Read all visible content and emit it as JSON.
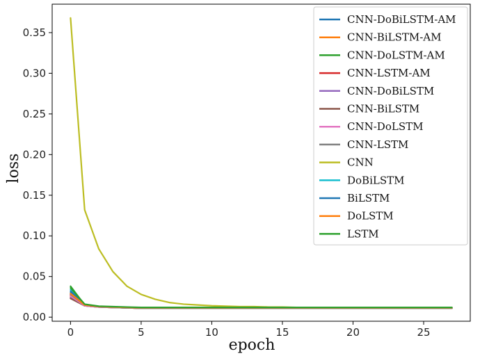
{
  "chart_data": {
    "type": "line",
    "title": "",
    "xlabel": "epoch",
    "ylabel": "loss",
    "xlim": [
      -1.3,
      28.3
    ],
    "ylim": [
      -0.005,
      0.385
    ],
    "x_ticks": [
      0,
      5,
      10,
      15,
      20,
      25
    ],
    "y_ticks": [
      0.0,
      0.05,
      0.1,
      0.15,
      0.2,
      0.25,
      0.3,
      0.35
    ],
    "y_tick_labels": [
      "0.00",
      "0.05",
      "0.10",
      "0.15",
      "0.20",
      "0.25",
      "0.30",
      "0.35"
    ],
    "grid": false,
    "legend_position": "top-right",
    "x": [
      0,
      1,
      2,
      3,
      4,
      5,
      6,
      7,
      8,
      9,
      10,
      11,
      12,
      13,
      14,
      15,
      16,
      17,
      18,
      19,
      20,
      21,
      22,
      23,
      24,
      25,
      26,
      27
    ],
    "series": [
      {
        "name": "CNN-DoBiLSTM-AM",
        "color": "#1f77b4",
        "values": [
          0.03,
          0.014,
          0.0125,
          0.012,
          0.0115,
          0.011,
          0.011,
          0.011,
          0.011,
          0.011,
          0.011,
          0.011,
          0.011,
          0.011,
          0.011,
          0.011,
          0.011,
          0.011,
          0.011,
          0.011,
          0.011,
          0.011,
          0.011,
          0.011,
          0.011,
          0.011,
          0.011,
          0.011
        ]
      },
      {
        "name": "CNN-BiLSTM-AM",
        "color": "#ff7f0e",
        "values": [
          0.025,
          0.014,
          0.0125,
          0.012,
          0.0115,
          0.011,
          0.011,
          0.011,
          0.011,
          0.011,
          0.011,
          0.011,
          0.011,
          0.011,
          0.011,
          0.011,
          0.011,
          0.011,
          0.011,
          0.011,
          0.011,
          0.011,
          0.011,
          0.011,
          0.011,
          0.011,
          0.011,
          0.011
        ]
      },
      {
        "name": "CNN-DoLSTM-AM",
        "color": "#2ca02c",
        "values": [
          0.038,
          0.015,
          0.013,
          0.0125,
          0.012,
          0.0115,
          0.0115,
          0.0115,
          0.0115,
          0.0115,
          0.0115,
          0.0115,
          0.0115,
          0.0115,
          0.0115,
          0.0115,
          0.0115,
          0.0115,
          0.0115,
          0.0115,
          0.0115,
          0.0115,
          0.0115,
          0.0115,
          0.0115,
          0.0115,
          0.0115,
          0.0115
        ]
      },
      {
        "name": "CNN-LSTM-AM",
        "color": "#d62728",
        "values": [
          0.027,
          0.015,
          0.013,
          0.012,
          0.0115,
          0.011,
          0.011,
          0.011,
          0.011,
          0.011,
          0.011,
          0.011,
          0.011,
          0.011,
          0.011,
          0.011,
          0.011,
          0.011,
          0.011,
          0.011,
          0.011,
          0.011,
          0.011,
          0.011,
          0.011,
          0.011,
          0.011,
          0.011
        ]
      },
      {
        "name": "CNN-DoBiLSTM",
        "color": "#9467bd",
        "values": [
          0.024,
          0.014,
          0.0125,
          0.012,
          0.0115,
          0.011,
          0.011,
          0.011,
          0.011,
          0.011,
          0.011,
          0.011,
          0.011,
          0.011,
          0.011,
          0.011,
          0.011,
          0.011,
          0.011,
          0.011,
          0.011,
          0.011,
          0.011,
          0.011,
          0.011,
          0.011,
          0.011,
          0.011
        ]
      },
      {
        "name": "CNN-BiLSTM",
        "color": "#8c564b",
        "values": [
          0.023,
          0.014,
          0.0125,
          0.012,
          0.0115,
          0.011,
          0.011,
          0.011,
          0.011,
          0.011,
          0.011,
          0.011,
          0.011,
          0.011,
          0.011,
          0.011,
          0.011,
          0.011,
          0.011,
          0.011,
          0.011,
          0.011,
          0.011,
          0.011,
          0.011,
          0.011,
          0.011,
          0.011
        ]
      },
      {
        "name": "CNN-DoLSTM",
        "color": "#e377c2",
        "values": [
          0.026,
          0.014,
          0.0125,
          0.012,
          0.0115,
          0.011,
          0.011,
          0.011,
          0.011,
          0.011,
          0.011,
          0.011,
          0.011,
          0.011,
          0.011,
          0.011,
          0.011,
          0.011,
          0.011,
          0.011,
          0.011,
          0.011,
          0.011,
          0.011,
          0.011,
          0.011,
          0.011,
          0.011
        ]
      },
      {
        "name": "CNN-LSTM",
        "color": "#7f7f7f",
        "values": [
          0.028,
          0.015,
          0.013,
          0.012,
          0.0115,
          0.011,
          0.011,
          0.011,
          0.011,
          0.011,
          0.011,
          0.011,
          0.011,
          0.011,
          0.011,
          0.011,
          0.011,
          0.011,
          0.011,
          0.011,
          0.011,
          0.011,
          0.011,
          0.011,
          0.011,
          0.011,
          0.011,
          0.011
        ]
      },
      {
        "name": "CNN",
        "color": "#bcbd22",
        "values": [
          0.368,
          0.132,
          0.084,
          0.056,
          0.038,
          0.028,
          0.022,
          0.018,
          0.016,
          0.015,
          0.014,
          0.0135,
          0.013,
          0.013,
          0.0125,
          0.0125,
          0.012,
          0.012,
          0.012,
          0.012,
          0.012,
          0.012,
          0.012,
          0.012,
          0.012,
          0.012,
          0.012,
          0.012
        ]
      },
      {
        "name": "DoBiLSTM",
        "color": "#17becf",
        "values": [
          0.034,
          0.015,
          0.013,
          0.0125,
          0.012,
          0.0115,
          0.0115,
          0.0115,
          0.0115,
          0.0115,
          0.0115,
          0.0115,
          0.0115,
          0.0115,
          0.0115,
          0.0115,
          0.0115,
          0.0115,
          0.0115,
          0.0115,
          0.0115,
          0.0115,
          0.0115,
          0.0115,
          0.0115,
          0.0115,
          0.0115,
          0.0115
        ]
      },
      {
        "name": "BiLSTM",
        "color": "#1f77b4",
        "values": [
          0.032,
          0.015,
          0.013,
          0.0125,
          0.012,
          0.0115,
          0.0115,
          0.0115,
          0.0115,
          0.0115,
          0.0115,
          0.0115,
          0.0115,
          0.0115,
          0.0115,
          0.0115,
          0.0115,
          0.0115,
          0.0115,
          0.0115,
          0.0115,
          0.0115,
          0.0115,
          0.0115,
          0.0115,
          0.0115,
          0.0115,
          0.0115
        ]
      },
      {
        "name": "DoLSTM",
        "color": "#ff7f0e",
        "values": [
          0.029,
          0.015,
          0.013,
          0.0125,
          0.012,
          0.0115,
          0.0115,
          0.0115,
          0.0115,
          0.0115,
          0.0115,
          0.0115,
          0.0115,
          0.0115,
          0.0115,
          0.0115,
          0.0115,
          0.0115,
          0.0115,
          0.0115,
          0.0115,
          0.0115,
          0.0115,
          0.0115,
          0.0115,
          0.0115,
          0.0115,
          0.0115
        ]
      },
      {
        "name": "LSTM",
        "color": "#2ca02c",
        "values": [
          0.036,
          0.016,
          0.0135,
          0.013,
          0.0125,
          0.012,
          0.012,
          0.012,
          0.012,
          0.012,
          0.012,
          0.012,
          0.012,
          0.012,
          0.012,
          0.012,
          0.012,
          0.012,
          0.012,
          0.012,
          0.012,
          0.012,
          0.012,
          0.012,
          0.012,
          0.012,
          0.012,
          0.012
        ]
      }
    ]
  }
}
